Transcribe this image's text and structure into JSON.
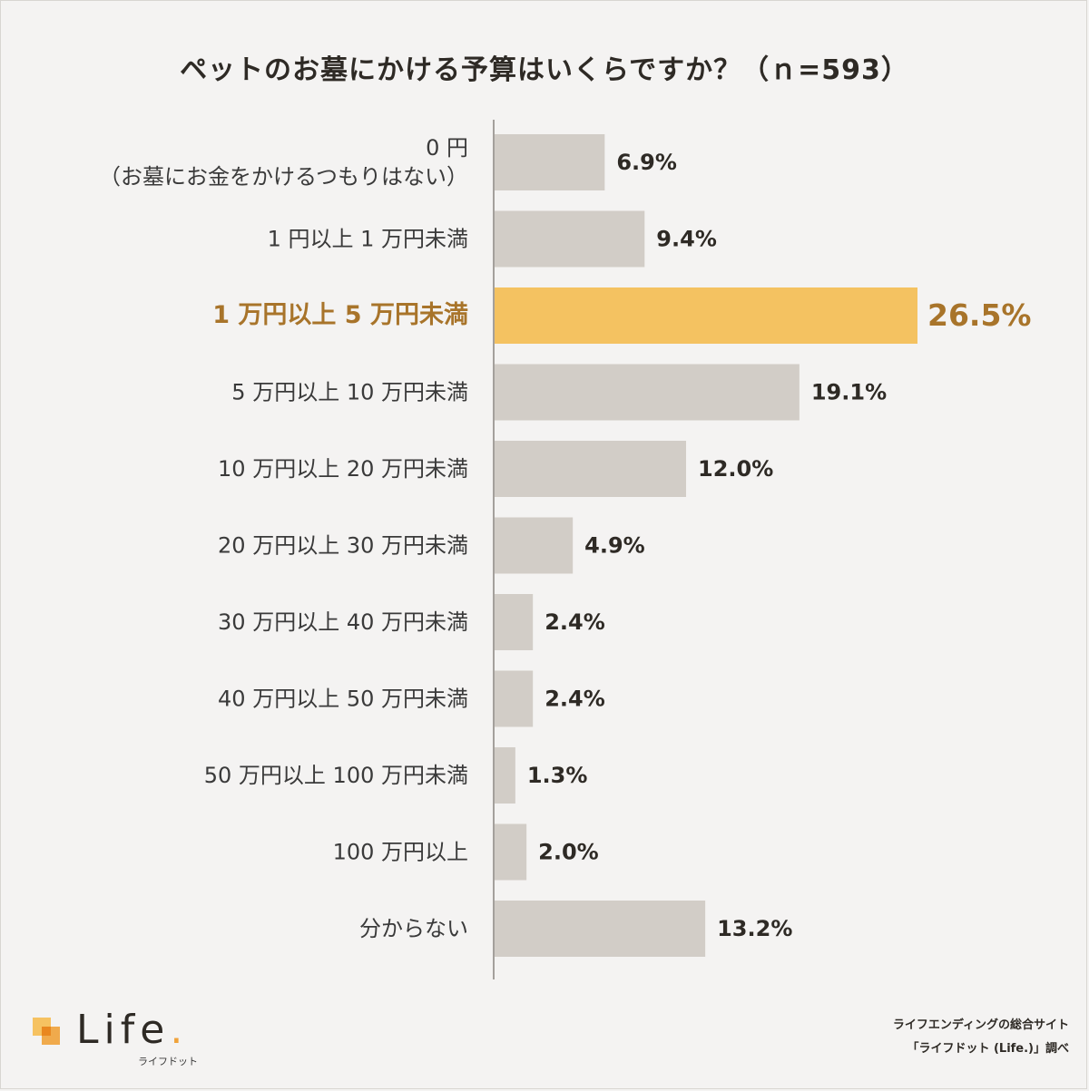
{
  "title": "ペットのお墓にかける予算はいくらですか？（ｎ=593）",
  "chart_data": {
    "type": "bar",
    "orientation": "horizontal",
    "title": "ペットのお墓にかける予算はいくらですか？（ｎ=593）",
    "categories": [
      [
        "0 円",
        "（お墓にお金をかけるつもりはない）"
      ],
      [
        "1 円以上 1 万円未満"
      ],
      [
        "1 万円以上 5 万円未満"
      ],
      [
        "5 万円以上 10 万円未満"
      ],
      [
        "10 万円以上 20 万円未満"
      ],
      [
        "20 万円以上 30 万円未満"
      ],
      [
        "30 万円以上 40 万円未満"
      ],
      [
        "40 万円以上 50 万円未満"
      ],
      [
        "50 万円以上 100 万円未満"
      ],
      [
        "100 万円以上"
      ],
      [
        "分からない"
      ]
    ],
    "values": [
      6.9,
      9.4,
      26.5,
      19.1,
      12.0,
      4.9,
      2.4,
      2.4,
      1.3,
      2.0,
      13.2
    ],
    "value_labels": [
      "6.9%",
      "9.4%",
      "26.5%",
      "19.1%",
      "12.0%",
      "4.9%",
      "2.4%",
      "2.4%",
      "1.3%",
      "2.0%",
      "13.2%"
    ],
    "highlight_index": 2,
    "colors": {
      "bar": "#d2cdc7",
      "highlight": "#f4c261",
      "highlight_text": "#a8742a",
      "axis": "#8a8580"
    },
    "grid": false
  },
  "logo": {
    "name": "Life",
    "sub": "ライフドット"
  },
  "credit": {
    "line1": "ライフエンディングの総合サイト",
    "line2": "「ライフドット (Life.)」調べ"
  }
}
